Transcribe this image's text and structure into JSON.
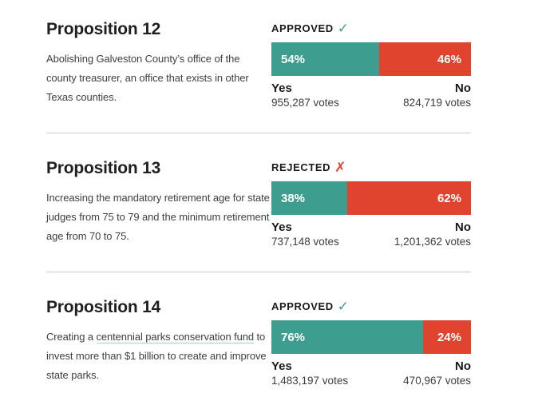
{
  "colors": {
    "yes_teal": "#3d9e8f",
    "no_red": "#e0442f",
    "divider_gray": "#cbcbcb",
    "link_underline_blue": "#a9cede"
  },
  "propositions": [
    {
      "title": "Proposition 12",
      "desc_before": "Abolishing Galveston County’s office of the county treasurer, an office that exists in other Texas counties.",
      "desc_link": "",
      "desc_after": "",
      "status_label": "APPROVED",
      "status_icon": "✓",
      "yes_pct": 54,
      "no_pct": 46,
      "yes_pct_label": "54%",
      "no_pct_label": "46%",
      "yes_label": "Yes",
      "no_label": "No",
      "yes_votes": "955,287 votes",
      "no_votes": "824,719 votes"
    },
    {
      "title": "Proposition 13",
      "desc_before": "Increasing the mandatory retirement age for state judges from 75 to 79 and the minimum retirement age from 70 to 75.",
      "desc_link": "",
      "desc_after": "",
      "status_label": "REJECTED",
      "status_icon": "✗",
      "yes_pct": 38,
      "no_pct": 62,
      "yes_pct_label": "38%",
      "no_pct_label": "62%",
      "yes_label": "Yes",
      "no_label": "No",
      "yes_votes": "737,148 votes",
      "no_votes": "1,201,362 votes"
    },
    {
      "title": "Proposition 14",
      "desc_before": "Creating a ",
      "desc_link": "centennial parks conservation fund",
      "desc_after": " to invest more than $1 billion to create and improve state parks.",
      "status_label": "APPROVED",
      "status_icon": "✓",
      "yes_pct": 76,
      "no_pct": 24,
      "yes_pct_label": "76%",
      "no_pct_label": "24%",
      "yes_label": "Yes",
      "no_label": "No",
      "yes_votes": "1,483,197 votes",
      "no_votes": "470,967 votes"
    }
  ],
  "chart_data": [
    {
      "type": "bar",
      "title": "Proposition 12",
      "subtitle": "Abolishing Galveston County’s office of the county treasurer, an office that exists in other Texas counties.",
      "status": "APPROVED",
      "categories": [
        "Yes",
        "No"
      ],
      "values": [
        54,
        46
      ],
      "votes": [
        955287,
        824719
      ],
      "value_labels": [
        "54%",
        "46%"
      ],
      "vote_labels": [
        "955,287 votes",
        "824,719 votes"
      ],
      "colors": [
        "#3d9e8f",
        "#e0442f"
      ],
      "xlim": [
        0,
        100
      ]
    },
    {
      "type": "bar",
      "title": "Proposition 13",
      "subtitle": "Increasing the mandatory retirement age for state judges from 75 to 79 and the minimum retirement age from 70 to 75.",
      "status": "REJECTED",
      "categories": [
        "Yes",
        "No"
      ],
      "values": [
        38,
        62
      ],
      "votes": [
        737148,
        1201362
      ],
      "value_labels": [
        "38%",
        "62%"
      ],
      "vote_labels": [
        "737,148 votes",
        "1,201,362 votes"
      ],
      "colors": [
        "#3d9e8f",
        "#e0442f"
      ],
      "xlim": [
        0,
        100
      ]
    },
    {
      "type": "bar",
      "title": "Proposition 14",
      "subtitle": "Creating a centennial parks conservation fund to invest more than $1 billion to create and improve state parks.",
      "status": "APPROVED",
      "categories": [
        "Yes",
        "No"
      ],
      "values": [
        76,
        24
      ],
      "votes": [
        1483197,
        470967
      ],
      "value_labels": [
        "76%",
        "24%"
      ],
      "vote_labels": [
        "1,483,197 votes",
        "470,967 votes"
      ],
      "colors": [
        "#3d9e8f",
        "#e0442f"
      ],
      "xlim": [
        0,
        100
      ]
    }
  ]
}
